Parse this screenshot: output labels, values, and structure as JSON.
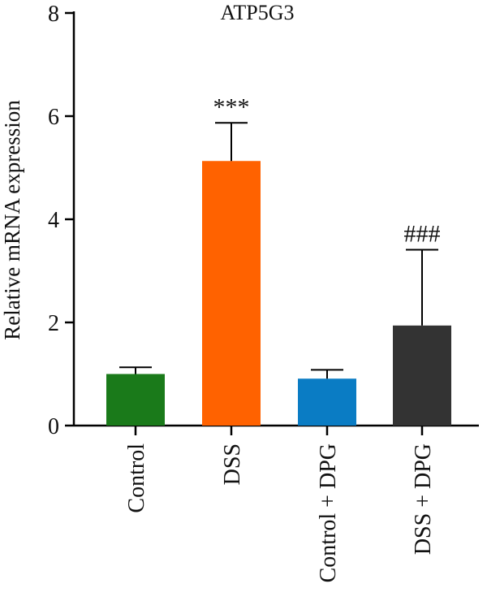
{
  "chart_data": {
    "type": "bar",
    "title": "ATP5G3",
    "ylabel": "Relative mRNA expression",
    "xlabel": "",
    "ylim": [
      0,
      8
    ],
    "yticks": [
      "0",
      "2",
      "4",
      "6",
      "8"
    ],
    "categories": [
      "Control",
      "DSS",
      "Control + DPG",
      "DSS + DPG"
    ],
    "values": [
      1.0,
      5.13,
      0.91,
      1.94
    ],
    "errors": [
      0.13,
      0.74,
      0.17,
      1.47
    ],
    "annotations": [
      "",
      "***",
      "",
      "###"
    ],
    "colors": [
      "#1a7a1a",
      "#ff6200",
      "#0a7cc4",
      "#333333"
    ]
  }
}
